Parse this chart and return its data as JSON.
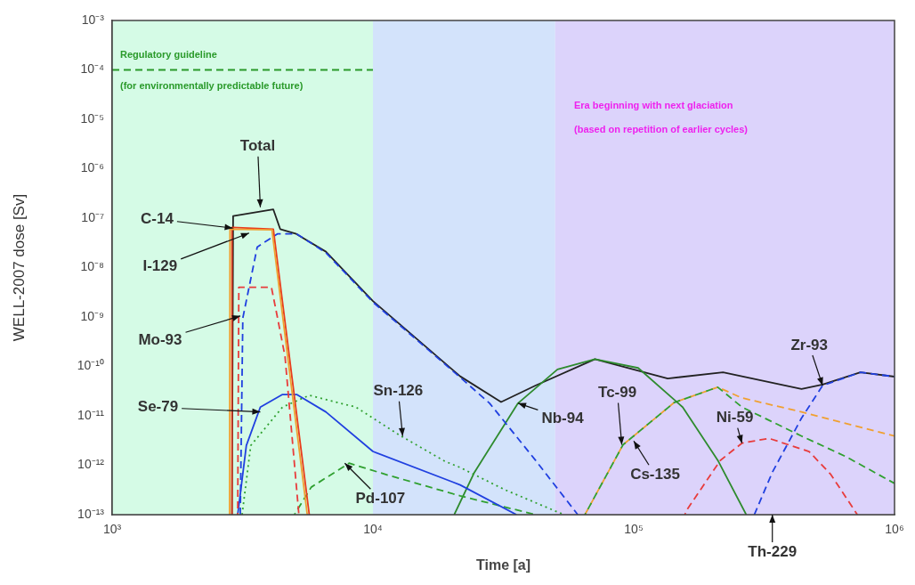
{
  "chart_data": {
    "type": "line",
    "xlabel": "Time [a]",
    "ylabel": "WELL-2007 dose [Sv]",
    "log": "xy",
    "grid": false,
    "legend": false,
    "marker": "none",
    "xlim": [
      1000,
      1000000
    ],
    "ylim": [
      1e-13,
      0.001
    ],
    "xticks": [
      {
        "value": 1000,
        "label": "10³"
      },
      {
        "value": 10000,
        "label": "10⁴"
      },
      {
        "value": 100000,
        "label": "10⁵"
      },
      {
        "value": 1000000,
        "label": "10⁶"
      }
    ],
    "yticks": [
      {
        "value": 1e-13,
        "label": "10⁻¹³"
      },
      {
        "value": 1e-12,
        "label": "10⁻¹²"
      },
      {
        "value": 1e-11,
        "label": "10⁻¹¹"
      },
      {
        "value": 1e-10,
        "label": "10⁻¹⁰"
      },
      {
        "value": 1e-09,
        "label": "10⁻⁹"
      },
      {
        "value": 1e-08,
        "label": "10⁻⁸"
      },
      {
        "value": 1e-07,
        "label": "10⁻⁷"
      },
      {
        "value": 1e-06,
        "label": "10⁻⁶"
      },
      {
        "value": 1e-05,
        "label": "10⁻⁵"
      },
      {
        "value": 0.0001,
        "label": "10⁻⁴"
      },
      {
        "value": 0.001,
        "label": "10⁻³"
      }
    ],
    "bands": [
      {
        "axis": "x",
        "from": 1000,
        "to": 10000,
        "color": "#d5fbe6"
      },
      {
        "axis": "x",
        "from": 10000,
        "to": 50000,
        "color": "#d3e3fb"
      },
      {
        "axis": "x",
        "from": 50000,
        "to": 1000000,
        "color": "#dcd3fb"
      }
    ],
    "series": [
      {
        "color": "#2a9a2a",
        "line_style": "dashed",
        "x": [
          1000,
          10000
        ],
        "values": [
          0.0001,
          0.0001
        ]
      },
      {
        "color": "#f0a030",
        "line_style": "solid",
        "x": [
          2820,
          2830,
          4100,
          5600
        ],
        "values": [
          1e-13,
          6e-08,
          5.8e-08,
          1e-13
        ]
      },
      {
        "color": "#e83c1c",
        "line_style": "solid",
        "x": [
          2870,
          2880,
          4150,
          5700
        ],
        "values": [
          1e-13,
          6.5e-08,
          6e-08,
          1e-13
        ]
      },
      {
        "color": "#e83c3c",
        "line_style": "dashed",
        "x": [
          3030,
          3060,
          4080,
          4300,
          4600,
          5200
        ],
        "values": [
          1e-13,
          4e-09,
          4e-09,
          1e-09,
          1.6e-10,
          1e-13
        ]
      },
      {
        "color": "#2040e0",
        "line_style": "dashed",
        "x": [
          3100,
          3170,
          3600,
          4300,
          5100,
          6600,
          10000,
          21600,
          28000,
          42000,
          61000
        ],
        "values": [
          1e-13,
          9.5e-10,
          2.6e-08,
          4.8e-08,
          4.8e-08,
          2e-08,
          2e-09,
          6e-11,
          1.8e-11,
          1.26e-12,
          1e-13
        ]
      },
      {
        "color": "#2040e0",
        "line_style": "solid",
        "x": [
          3030,
          3270,
          3700,
          4500,
          5100,
          6600,
          10000,
          21600,
          35500
        ],
        "values": [
          1e-13,
          2.5e-12,
          1.5e-11,
          2.7e-11,
          2.7e-11,
          1.2e-11,
          1.9e-12,
          4e-13,
          1e-13
        ]
      },
      {
        "color": "#30a030",
        "line_style": "dotted",
        "x": [
          3150,
          3400,
          4500,
          5700,
          8600,
          12800,
          18900,
          21600,
          32000,
          54000
        ],
        "values": [
          1e-13,
          2.5e-12,
          1.5e-11,
          2.6e-11,
          1.5e-11,
          3.9e-12,
          1.2e-12,
          9e-13,
          3.2e-13,
          1e-13
        ]
      },
      {
        "color": "#30a030",
        "line_style": "dashed",
        "x": [
          5000,
          5800,
          8100,
          11200,
          21600,
          42000
        ],
        "values": [
          1e-13,
          3.6e-13,
          1.1e-12,
          6.5e-13,
          2.4e-13,
          1e-13
        ]
      },
      {
        "color": "#2e8b2e",
        "line_style": "solid",
        "x": [
          20500,
          24500,
          36000,
          51000,
          71000,
          104000,
          154000,
          210000,
          270000
        ],
        "values": [
          1e-13,
          7.2e-13,
          1.8e-11,
          8.7e-11,
          1.4e-10,
          9.3e-11,
          1.5e-11,
          1.26e-12,
          1e-13
        ]
      },
      {
        "color": "#30a030",
        "line_style": "dashed",
        "x": [
          65000,
          91000,
          143000,
          210000,
          260000,
          440000,
          650000,
          1000000
        ],
        "values": [
          1e-13,
          2.6e-12,
          1.86e-11,
          3.8e-11,
          1.5e-11,
          3.9e-12,
          1.5e-12,
          4.3e-13
        ]
      },
      {
        "color": "#f0a030",
        "line_style": "dashed",
        "x": [
          65000,
          91000,
          143000,
          210000,
          260000,
          440000,
          1000000
        ],
        "values": [
          1e-13,
          2.6e-12,
          1.86e-11,
          3.8e-11,
          2.3e-11,
          1.2e-11,
          3.9e-12
        ]
      },
      {
        "color": "#e83c3c",
        "line_style": "dashed",
        "x": [
          157000,
          160000,
          215000,
          260000,
          330000,
          470000,
          570000,
          720000
        ],
        "values": [
          1e-13,
          1.26e-13,
          1.26e-12,
          2.8e-12,
          3.5e-12,
          1.9e-12,
          6.5e-13,
          1e-13
        ]
      },
      {
        "color": "#2040e0",
        "line_style": "dashed",
        "x": [
          290000,
          340000,
          440000,
          530000,
          740000,
          1000000
        ],
        "values": [
          1e-13,
          7.2e-13,
          9e-12,
          4.1e-11,
          7.6e-11,
          6.2e-11
        ]
      },
      {
        "color": "#222222",
        "line_style": "solid",
        "x": [
          2880,
          2910,
          4150,
          4410,
          5080,
          6600,
          10000,
          21600,
          31000,
          42000,
          71000,
          135000,
          220000,
          440000,
          530000,
          740000,
          1000000
        ],
        "values": [
          1e-13,
          1.1e-07,
          1.5e-07,
          6e-08,
          4.8e-08,
          2.1e-08,
          2.1e-09,
          6.3e-11,
          1.9e-11,
          4.1e-11,
          1.4e-10,
          5.7e-11,
          7.6e-11,
          3.5e-11,
          4.3e-11,
          7.6e-11,
          6.2e-11
        ]
      }
    ],
    "annotations": [
      "Regulatory guideline",
      "(for environmentally predictable future)",
      "Era beginning with next glaciation",
      "(based on repetition of earlier cycles)",
      {
        "text": "Total",
        "x": 3700,
        "y": 1.66e-07
      },
      {
        "text": "C-14",
        "x": 2900,
        "y": 6.3e-08
      },
      {
        "text": "I-129",
        "x": 3350,
        "y": 5e-08
      },
      {
        "text": "Mo-93",
        "x": 3100,
        "y": 1.05e-09
      },
      {
        "text": "Se-79",
        "x": 3700,
        "y": 1.2e-11
      },
      {
        "text": "Sn-126",
        "x": 13000,
        "y": 3.9e-12
      },
      {
        "text": "Pd-107",
        "x": 7800,
        "y": 1.1e-12
      },
      {
        "text": "Nb-94",
        "x": 36000,
        "y": 1.8e-11
      },
      {
        "text": "Tc-99",
        "x": 90000,
        "y": 2.6e-12
      },
      {
        "text": "Cs-135",
        "x": 100000,
        "y": 3.1e-12
      },
      {
        "text": "Ni-59",
        "x": 260000,
        "y": 2.8e-12
      },
      {
        "text": "Zr-93",
        "x": 530000,
        "y": 4.1e-11
      },
      {
        "text": "Th-229",
        "x": 340000,
        "y": 1e-13
      }
    ]
  }
}
